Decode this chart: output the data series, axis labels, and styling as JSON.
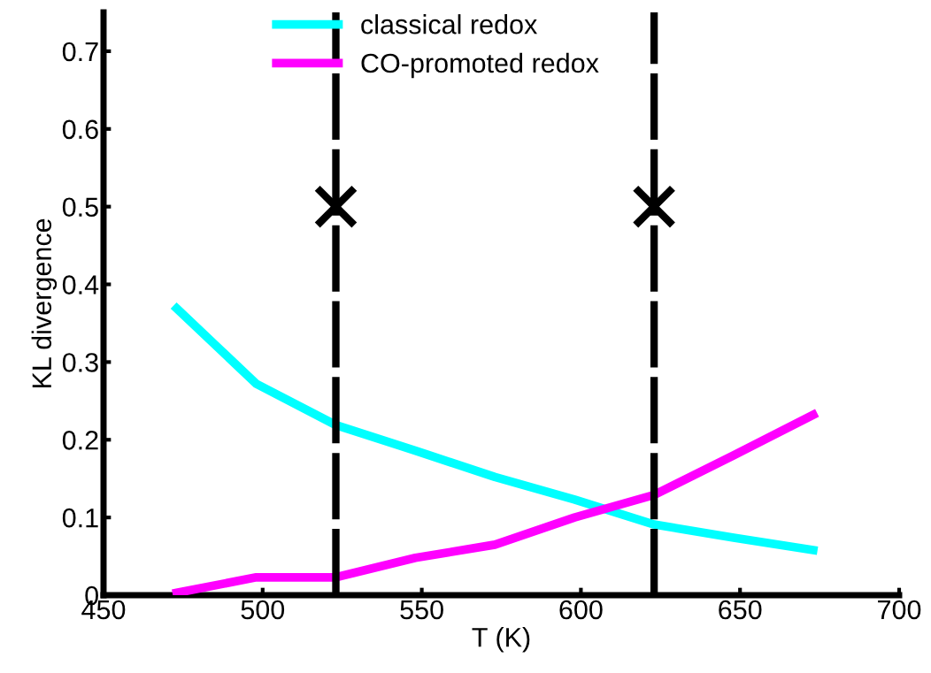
{
  "chart_data": {
    "type": "line",
    "xlabel": "T (K)",
    "ylabel": "KL divergence",
    "x": [
      473,
      498,
      523,
      548,
      573,
      598,
      623,
      648,
      673
    ],
    "series": [
      {
        "name": "classical redox",
        "color": "#00ffff",
        "values": [
          0.369,
          0.272,
          0.219,
          0.186,
          0.152,
          0.123,
          0.091,
          0.074,
          0.058
        ]
      },
      {
        "name": "CO-promoted redox",
        "color": "#ff00ff",
        "values": [
          0.003,
          0.023,
          0.023,
          0.048,
          0.065,
          0.1,
          0.129,
          0.18,
          0.232
        ]
      },
      {
        "type": "scatter",
        "color": "#000000",
        "marker": "cross",
        "x": [
          523,
          623
        ],
        "values": [
          0.5,
          0.5
        ]
      }
    ],
    "ref_lines": [
      {
        "axis": "x",
        "value": 523,
        "color": "#000000",
        "line_style": "dashed"
      },
      {
        "axis": "x",
        "value": 623,
        "color": "#000000",
        "line_style": "dashed"
      }
    ],
    "xlim": [
      450,
      700
    ],
    "xticks": [
      450,
      500,
      550,
      600,
      650,
      700
    ],
    "ylim": [
      0,
      0.75
    ],
    "yticks": [
      0,
      0.1,
      0.2,
      0.3,
      0.4,
      0.5,
      0.6,
      0.7
    ],
    "legend": "top",
    "grid": false,
    "marker": "none",
    "line_style": "solid"
  }
}
